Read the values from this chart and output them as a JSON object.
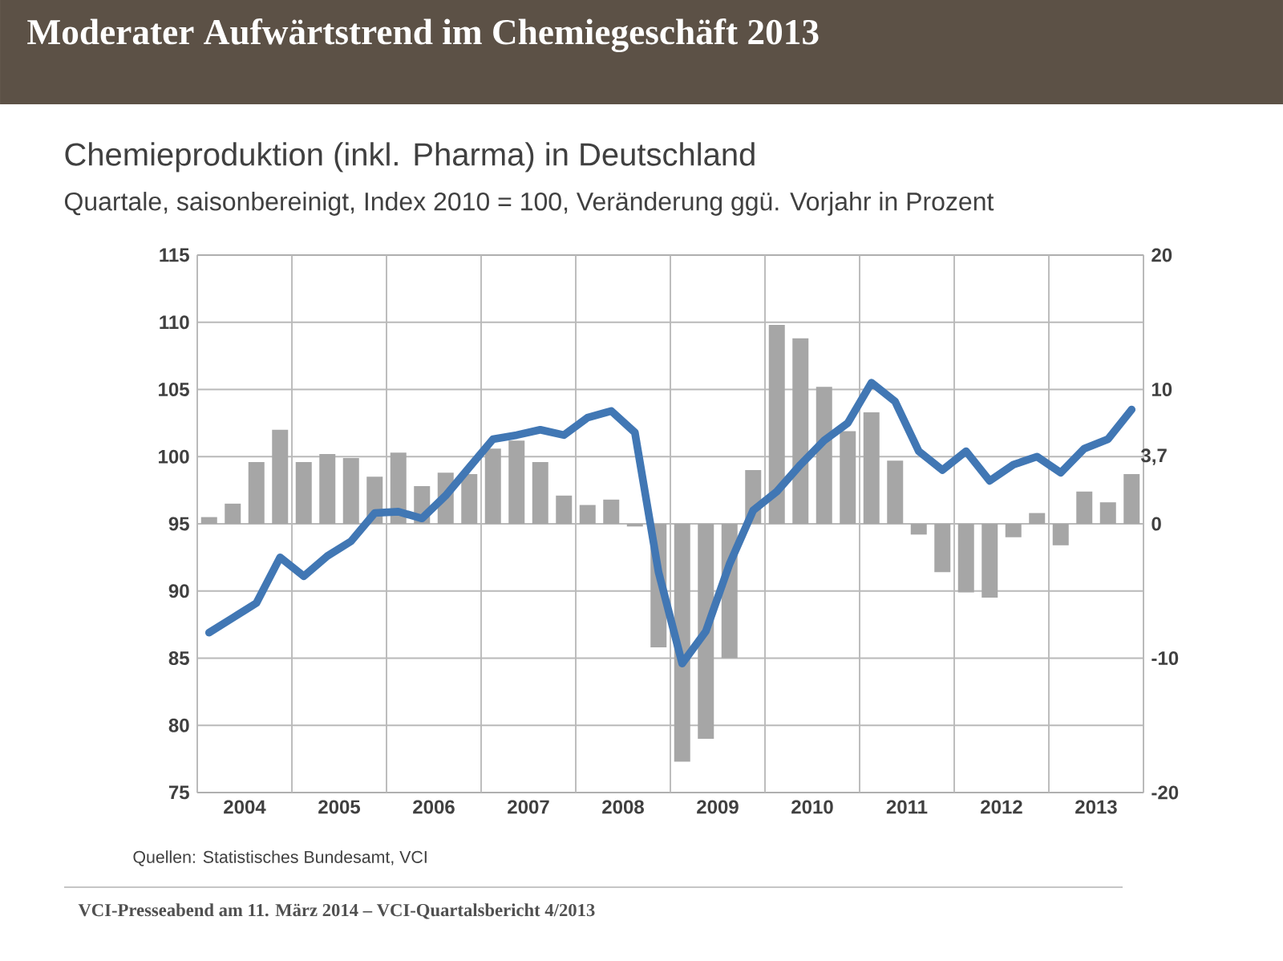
{
  "chart_data": {
    "type": "bar",
    "title": "Moderater Aufwärtstrend im Chemiegeschäft 2013",
    "subtitle": "Chemieproduktion (inkl. Pharma) in Deutschland",
    "annotations": [
      "Quartale, saisonbereinigt, Index 2010 = 100, Veränderung ggü. Vorjahr in Prozent",
      "Quellen: Statistisches Bundesamt, VCI",
      "VCI-Presseabend am 11. März 2014 – VCI-Quartalsbericht 4/2013"
    ],
    "x": [
      2004.125,
      2004.375,
      2004.625,
      2004.875,
      2005.125,
      2005.375,
      2005.625,
      2005.875,
      2006.125,
      2006.375,
      2006.625,
      2006.875,
      2007.125,
      2007.375,
      2007.625,
      2007.875,
      2008.125,
      2008.375,
      2008.625,
      2008.875,
      2009.125,
      2009.375,
      2009.625,
      2009.875,
      2010.125,
      2010.375,
      2010.625,
      2010.875,
      2011.125,
      2011.375,
      2011.625,
      2011.875,
      2012.125,
      2012.375,
      2012.625,
      2012.875,
      2013.125,
      2013.375,
      2013.625,
      2013.875
    ],
    "xlim": [
      2004,
      2014
    ],
    "xticks": [
      {
        "value": 2004,
        "label": null
      },
      {
        "value": 2004.5,
        "label": "2004"
      },
      {
        "value": 2005,
        "label": null
      },
      {
        "value": 2005.5,
        "label": "2005"
      },
      {
        "value": 2006,
        "label": null
      },
      {
        "value": 2006.5,
        "label": "2006"
      },
      {
        "value": 2007,
        "label": null
      },
      {
        "value": 2007.5,
        "label": "2007"
      },
      {
        "value": 2008,
        "label": null
      },
      {
        "value": 2008.5,
        "label": "2008"
      },
      {
        "value": 2009,
        "label": null
      },
      {
        "value": 2009.5,
        "label": "2009"
      },
      {
        "value": 2010,
        "label": null
      },
      {
        "value": 2010.5,
        "label": "2010"
      },
      {
        "value": 2011,
        "label": null
      },
      {
        "value": 2011.5,
        "label": "2011"
      },
      {
        "value": 2012,
        "label": null
      },
      {
        "value": 2012.5,
        "label": "2012"
      },
      {
        "value": 2013,
        "label": null
      },
      {
        "value": 2013.5,
        "label": "2013"
      },
      {
        "value": 2014,
        "label": null
      }
    ],
    "series": [
      {
        "axis": "y2",
        "color": "#a6a6a6",
        "values": [
          0.5,
          1.5,
          4.6,
          7.0,
          4.6,
          5.2,
          4.9,
          3.5,
          5.3,
          2.8,
          3.8,
          3.7,
          5.6,
          6.2,
          4.6,
          2.1,
          1.4,
          1.8,
          -0.2,
          -9.2,
          -17.7,
          -16.0,
          -10.0,
          4.0,
          14.8,
          13.8,
          10.2,
          6.9,
          8.3,
          4.7,
          -0.8,
          -3.6,
          -5.1,
          -5.5,
          -1.0,
          0.8,
          -1.6,
          2.4,
          1.6,
          3.7
        ],
        "value_labels": [
          null,
          null,
          null,
          null,
          null,
          null,
          null,
          null,
          null,
          null,
          null,
          null,
          null,
          null,
          null,
          null,
          null,
          null,
          null,
          null,
          null,
          null,
          null,
          null,
          null,
          null,
          null,
          null,
          null,
          null,
          null,
          null,
          null,
          null,
          null,
          null,
          null,
          null,
          null,
          "3,7"
        ]
      },
      {
        "type": "line",
        "color": "#4177b4",
        "values": [
          86.9,
          88.0,
          89.1,
          92.5,
          91.1,
          92.6,
          93.7,
          95.8,
          95.9,
          95.4,
          97.1,
          99.2,
          101.3,
          101.6,
          102.0,
          101.6,
          102.9,
          103.4,
          101.8,
          91.4,
          84.6,
          87.0,
          92.0,
          96.0,
          97.4,
          99.4,
          101.2,
          102.5,
          105.5,
          104.1,
          100.4,
          99.0,
          100.4,
          98.2,
          99.4,
          100.0,
          98.8,
          100.6,
          101.3,
          103.5
        ]
      }
    ],
    "ylim": [
      75,
      115
    ],
    "yticks": [
      75,
      80,
      85,
      90,
      95,
      100,
      105,
      110,
      115
    ],
    "y2lim": [
      -20,
      20
    ],
    "y2ticks": [
      -20,
      -10,
      0,
      10,
      20
    ],
    "grid": true
  }
}
